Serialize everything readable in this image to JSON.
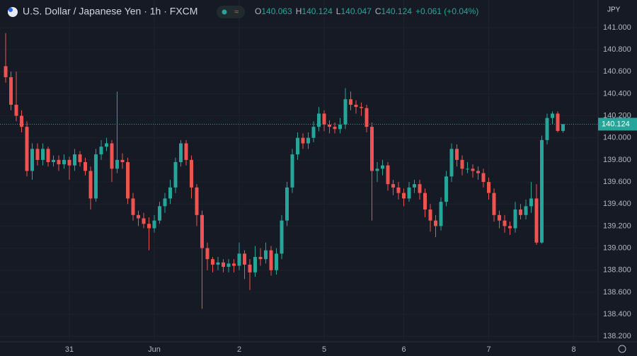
{
  "chart_data": {
    "type": "candlestick",
    "title": "U.S. Dollar / Japanese Yen · 1h · FXCM",
    "currency": "JPY",
    "ohlc_labels": [
      "O",
      "H",
      "L",
      "C"
    ],
    "change": "+0.061 (+0.04%)",
    "up_color": "#26a69a",
    "down_color": "#ef5350",
    "categories": [
      null,
      null,
      null,
      null,
      null,
      null,
      null,
      null,
      null,
      null,
      null,
      null,
      "31",
      null,
      null,
      null,
      null,
      null,
      null,
      null,
      null,
      null,
      null,
      null,
      null,
      null,
      null,
      null,
      "Jun",
      null,
      null,
      null,
      null,
      null,
      null,
      null,
      null,
      null,
      null,
      null,
      null,
      null,
      null,
      null,
      "2",
      null,
      null,
      null,
      null,
      null,
      null,
      null,
      null,
      null,
      null,
      null,
      null,
      null,
      null,
      null,
      "5",
      null,
      null,
      null,
      null,
      null,
      null,
      null,
      null,
      null,
      null,
      null,
      null,
      null,
      null,
      "6",
      null,
      null,
      null,
      null,
      null,
      null,
      null,
      null,
      null,
      null,
      null,
      null,
      null,
      null,
      null,
      "7",
      null,
      null,
      null,
      null,
      null,
      null,
      null,
      null,
      null,
      null,
      null,
      null,
      null,
      null,
      null,
      "8"
    ],
    "open": [
      140.65,
      140.55,
      140.3,
      140.2,
      140.1,
      139.7,
      139.9,
      139.8,
      139.9,
      139.78,
      139.8,
      139.76,
      139.8,
      139.75,
      139.85,
      139.78,
      139.7,
      139.45,
      139.85,
      139.92,
      139.95,
      139.72,
      139.8,
      139.78,
      139.45,
      139.3,
      139.27,
      139.22,
      139.18,
      139.25,
      139.38,
      139.45,
      139.55,
      139.78,
      139.95,
      139.8,
      139.55,
      139.3,
      139.0,
      138.9,
      138.85,
      138.87,
      138.83,
      138.86,
      138.84,
      138.95,
      138.85,
      138.78,
      138.92,
      138.9,
      138.98,
      138.8,
      138.95,
      139.25,
      139.55,
      139.85,
      140.0,
      139.95,
      140.0,
      140.1,
      140.22,
      140.12,
      140.1,
      140.08,
      140.12,
      140.35,
      140.3,
      140.28,
      140.27,
      140.1,
      139.7,
      139.72,
      139.75,
      139.58,
      139.55,
      139.5,
      139.45,
      139.55,
      139.58,
      139.5,
      139.35,
      139.25,
      139.2,
      139.42,
      139.65,
      139.9,
      139.8,
      139.72,
      139.72,
      139.7,
      139.68,
      139.6,
      139.5,
      139.3,
      139.25,
      139.2,
      139.18,
      139.35,
      139.3,
      139.38,
      139.45,
      139.05,
      139.98,
      140.18,
      140.22,
      140.063,
      null,
      null
    ],
    "high": [
      140.95,
      140.6,
      140.6,
      140.25,
      140.15,
      139.95,
      139.95,
      139.95,
      139.92,
      139.84,
      139.84,
      139.85,
      139.83,
      139.9,
      139.88,
      139.82,
      139.74,
      139.9,
      139.98,
      140.0,
      139.98,
      140.42,
      139.86,
      139.82,
      139.5,
      139.34,
      139.32,
      139.28,
      139.3,
      139.42,
      139.5,
      139.62,
      139.82,
      139.98,
      139.98,
      139.84,
      139.58,
      139.34,
      139.05,
      138.92,
      138.92,
      138.9,
      138.9,
      138.9,
      139.05,
      138.98,
      138.9,
      139.02,
      139.0,
      139.05,
      139.02,
      139.0,
      139.3,
      139.6,
      139.9,
      140.05,
      140.04,
      140.05,
      140.15,
      140.28,
      140.25,
      140.16,
      140.14,
      140.18,
      140.45,
      140.42,
      140.34,
      140.32,
      140.3,
      140.14,
      139.78,
      139.8,
      139.78,
      139.62,
      139.6,
      139.54,
      139.6,
      139.62,
      139.62,
      139.54,
      139.4,
      139.3,
      139.46,
      139.7,
      139.95,
      139.94,
      139.84,
      139.78,
      139.76,
      139.74,
      139.72,
      139.64,
      139.54,
      139.34,
      139.3,
      139.24,
      139.42,
      139.4,
      139.44,
      139.6,
      139.58,
      140.02,
      140.22,
      140.24,
      140.24,
      140.124,
      null,
      null
    ],
    "low": [
      140.5,
      140.25,
      140.15,
      140.05,
      139.65,
      139.62,
      139.75,
      139.75,
      139.74,
      139.74,
      139.7,
      139.72,
      139.62,
      139.7,
      139.74,
      139.66,
      139.35,
      139.42,
      139.8,
      139.88,
      139.6,
      139.68,
      139.72,
      139.4,
      139.25,
      139.2,
      139.18,
      138.98,
      139.14,
      139.22,
      139.32,
      139.4,
      139.5,
      139.74,
      139.75,
      139.45,
      139.2,
      138.45,
      138.8,
      138.78,
      138.8,
      138.78,
      138.78,
      138.78,
      138.8,
      138.72,
      138.62,
      138.74,
      138.84,
      138.86,
      138.75,
      138.76,
      138.9,
      139.2,
      139.5,
      139.8,
      139.9,
      139.9,
      139.96,
      140.06,
      140.06,
      140.04,
      140.04,
      140.04,
      140.08,
      140.25,
      140.22,
      140.2,
      140.05,
      139.25,
      139.6,
      139.66,
      139.52,
      139.48,
      139.44,
      139.38,
      139.42,
      139.5,
      139.44,
      139.28,
      139.15,
      139.1,
      139.16,
      139.38,
      139.6,
      139.74,
      139.66,
      139.68,
      139.64,
      139.62,
      139.55,
      139.44,
      139.24,
      139.18,
      139.14,
      139.12,
      139.14,
      139.26,
      139.26,
      139.32,
      139.03,
      139.04,
      139.94,
      140.12,
      140.05,
      140.047,
      null,
      null
    ],
    "close": [
      140.55,
      140.3,
      140.2,
      140.1,
      139.7,
      139.9,
      139.8,
      139.9,
      139.78,
      139.8,
      139.76,
      139.8,
      139.75,
      139.85,
      139.78,
      139.7,
      139.45,
      139.85,
      139.92,
      139.95,
      139.72,
      139.8,
      139.78,
      139.45,
      139.3,
      139.27,
      139.22,
      139.18,
      139.25,
      139.38,
      139.45,
      139.55,
      139.78,
      139.95,
      139.8,
      139.55,
      139.3,
      139.0,
      138.9,
      138.85,
      138.87,
      138.83,
      138.86,
      138.84,
      138.95,
      138.85,
      138.78,
      138.92,
      138.9,
      138.98,
      138.8,
      138.95,
      139.25,
      139.55,
      139.85,
      140.0,
      139.95,
      140.0,
      140.1,
      140.22,
      140.12,
      140.1,
      140.08,
      140.12,
      140.35,
      140.3,
      140.28,
      140.27,
      140.1,
      139.7,
      139.72,
      139.75,
      139.58,
      139.55,
      139.5,
      139.45,
      139.55,
      139.58,
      139.5,
      139.35,
      139.25,
      139.2,
      139.42,
      139.65,
      139.9,
      139.8,
      139.72,
      139.72,
      139.7,
      139.68,
      139.6,
      139.5,
      139.3,
      139.25,
      139.2,
      139.18,
      139.35,
      139.3,
      139.38,
      139.45,
      139.05,
      139.98,
      140.18,
      140.22,
      140.063,
      140.124,
      null,
      null
    ],
    "ylim": [
      138.15,
      141.25
    ],
    "yticks": [
      {
        "value": 141,
        "label": "141.000"
      },
      {
        "value": 140.8,
        "label": "140.800"
      },
      {
        "value": 140.6,
        "label": "140.600"
      },
      {
        "value": 140.4,
        "label": "140.400"
      },
      {
        "value": 140.2,
        "label": "140.200"
      },
      {
        "value": 140,
        "label": "140.000"
      },
      {
        "value": 139.8,
        "label": "139.800"
      },
      {
        "value": 139.6,
        "label": "139.600"
      },
      {
        "value": 139.4,
        "label": "139.400"
      },
      {
        "value": 139.2,
        "label": "139.200"
      },
      {
        "value": 139,
        "label": "139.000"
      },
      {
        "value": 138.8,
        "label": "138.800"
      },
      {
        "value": 138.6,
        "label": "138.600"
      },
      {
        "value": 138.4,
        "label": "138.400"
      },
      {
        "value": 138.2,
        "label": "138.200"
      }
    ]
  }
}
